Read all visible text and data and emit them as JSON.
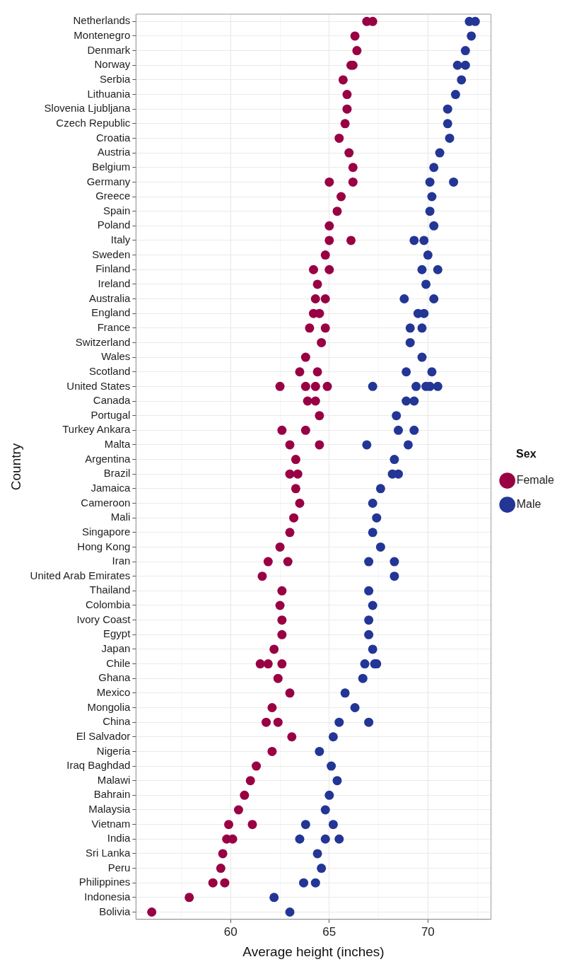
{
  "chart_data": {
    "type": "scatter",
    "orientation": "horizontal",
    "xlabel": "Average height (inches)",
    "ylabel": "Country",
    "legend_title": "Sex",
    "legend": "right",
    "grid": true,
    "marker": "circle",
    "xlim": [
      55.2,
      73.2
    ],
    "xticks": [
      {
        "value": 57.5,
        "label": null
      },
      60,
      {
        "value": 62.5,
        "label": null
      },
      65,
      {
        "value": 67.5,
        "label": null
      },
      70,
      {
        "value": 72.5,
        "label": null
      }
    ],
    "categories": [
      "Netherlands",
      "Montenegro",
      "Denmark",
      "Norway",
      "Serbia",
      "Lithuania",
      "Slovenia Ljubljana",
      "Czech Republic",
      "Croatia",
      "Austria",
      "Belgium",
      "Germany",
      "Greece",
      "Spain",
      "Poland",
      "Italy",
      "Sweden",
      "Finland",
      "Ireland",
      "Australia",
      "England",
      "France",
      "Switzerland",
      "Wales",
      "Scotland",
      "United States",
      "Canada",
      "Portugal",
      "Turkey Ankara",
      "Malta",
      "Argentina",
      "Brazil",
      "Jamaica",
      "Cameroon",
      "Mali",
      "Singapore",
      "Hong Kong",
      "Iran",
      "United Arab Emirates",
      "Thailand",
      "Colombia",
      "Ivory Coast",
      "Egypt",
      "Japan",
      "Chile",
      "Ghana",
      "Mexico",
      "Mongolia",
      "China",
      "El Salvador",
      "Nigeria",
      "Iraq Baghdad",
      "Malawi",
      "Bahrain",
      "Malaysia",
      "Vietnam",
      "India",
      "Sri Lanka",
      "Peru",
      "Philippines",
      "Indonesia",
      "Bolivia"
    ],
    "series": [
      {
        "name": "Female",
        "color": "#990044",
        "x": [
          "Netherlands",
          "Netherlands",
          "Montenegro",
          "Denmark",
          "Norway",
          "Norway",
          "Serbia",
          "Lithuania",
          "Slovenia Ljubljana",
          "Czech Republic",
          "Croatia",
          "Austria",
          "Belgium",
          "Germany",
          "Germany",
          "Greece",
          "Spain",
          "Poland",
          "Italy",
          "Italy",
          "Sweden",
          "Finland",
          "Finland",
          "Ireland",
          "Australia",
          "Australia",
          "England",
          "England",
          "France",
          "France",
          "Switzerland",
          "Wales",
          "Scotland",
          "Scotland",
          "United States",
          "United States",
          "United States",
          "United States",
          "Canada",
          "Canada",
          "Portugal",
          "Turkey Ankara",
          "Turkey Ankara",
          "Malta",
          "Malta",
          "Argentina",
          "Brazil",
          "Brazil",
          "Jamaica",
          "Cameroon",
          "Mali",
          "Singapore",
          "Hong Kong",
          "Iran",
          "Iran",
          "United Arab Emirates",
          "Thailand",
          "Colombia",
          "Ivory Coast",
          "Egypt",
          "Japan",
          "Chile",
          "Chile",
          "Chile",
          "Ghana",
          "Mexico",
          "Mongolia",
          "China",
          "China",
          "El Salvador",
          "Nigeria",
          "Iraq Baghdad",
          "Malawi",
          "Bahrain",
          "Malaysia",
          "Vietnam",
          "Vietnam",
          "India",
          "India",
          "Sri Lanka",
          "Peru",
          "Philippines",
          "Philippines",
          "Indonesia",
          "Bolivia"
        ],
        "values": [
          66.9,
          67.2,
          66.3,
          66.4,
          66.1,
          66.2,
          65.7,
          65.9,
          65.9,
          65.8,
          65.5,
          66.0,
          66.2,
          65.0,
          66.2,
          65.6,
          65.4,
          65.0,
          65.0,
          66.1,
          64.8,
          64.2,
          65.0,
          64.4,
          64.3,
          64.8,
          64.2,
          64.5,
          64.0,
          64.8,
          64.6,
          63.8,
          63.5,
          64.4,
          62.5,
          63.8,
          64.3,
          64.9,
          63.9,
          64.3,
          64.5,
          62.6,
          63.8,
          63.0,
          64.5,
          63.3,
          63.0,
          63.4,
          63.3,
          63.5,
          63.2,
          63.0,
          62.5,
          61.9,
          62.9,
          61.6,
          62.6,
          62.5,
          62.6,
          62.6,
          62.2,
          61.5,
          61.9,
          62.6,
          62.4,
          63.0,
          62.1,
          61.8,
          62.4,
          63.1,
          62.1,
          61.3,
          61.0,
          60.7,
          60.4,
          59.9,
          61.1,
          59.8,
          60.1,
          59.6,
          59.5,
          59.1,
          59.7,
          57.9,
          56.0
        ]
      },
      {
        "name": "Male",
        "color": "#233696",
        "x": [
          "Netherlands",
          "Netherlands",
          "Montenegro",
          "Denmark",
          "Norway",
          "Norway",
          "Serbia",
          "Lithuania",
          "Slovenia Ljubljana",
          "Czech Republic",
          "Croatia",
          "Austria",
          "Belgium",
          "Germany",
          "Germany",
          "Greece",
          "Spain",
          "Poland",
          "Italy",
          "Italy",
          "Sweden",
          "Finland",
          "Finland",
          "Ireland",
          "Australia",
          "Australia",
          "England",
          "England",
          "France",
          "France",
          "Switzerland",
          "Wales",
          "Scotland",
          "Scotland",
          "United States",
          "United States",
          "United States",
          "United States",
          "United States",
          "Canada",
          "Canada",
          "Portugal",
          "Turkey Ankara",
          "Turkey Ankara",
          "Malta",
          "Malta",
          "Argentina",
          "Brazil",
          "Brazil",
          "Jamaica",
          "Cameroon",
          "Mali",
          "Singapore",
          "Hong Kong",
          "Iran",
          "Iran",
          "United Arab Emirates",
          "Thailand",
          "Colombia",
          "Ivory Coast",
          "Egypt",
          "Japan",
          "Chile",
          "Chile",
          "Chile",
          "Ghana",
          "Mexico",
          "Mongolia",
          "China",
          "China",
          "El Salvador",
          "Nigeria",
          "Iraq Baghdad",
          "Malawi",
          "Bahrain",
          "Malaysia",
          "Vietnam",
          "Vietnam",
          "India",
          "India",
          "India",
          "Sri Lanka",
          "Peru",
          "Philippines",
          "Philippines",
          "Indonesia",
          "Bolivia"
        ],
        "values": [
          72.1,
          72.4,
          72.2,
          71.9,
          71.5,
          71.9,
          71.7,
          71.4,
          71.0,
          71.0,
          71.1,
          70.6,
          70.3,
          70.1,
          71.3,
          70.2,
          70.1,
          70.3,
          69.3,
          69.8,
          70.0,
          69.7,
          70.5,
          69.9,
          68.8,
          70.3,
          69.5,
          69.8,
          69.1,
          69.7,
          69.1,
          69.7,
          68.9,
          70.2,
          67.2,
          69.4,
          69.9,
          70.1,
          70.5,
          68.9,
          69.3,
          68.4,
          68.5,
          69.3,
          66.9,
          69.0,
          68.3,
          68.2,
          68.5,
          67.6,
          67.2,
          67.4,
          67.2,
          67.6,
          67.0,
          68.3,
          68.3,
          67.0,
          67.2,
          67.0,
          67.0,
          67.2,
          66.8,
          67.3,
          67.4,
          66.7,
          65.8,
          66.3,
          65.5,
          67.0,
          65.2,
          64.5,
          65.1,
          65.4,
          65.0,
          64.8,
          63.8,
          65.2,
          63.5,
          64.8,
          65.5,
          64.4,
          64.6,
          63.7,
          64.3,
          62.2,
          63.0
        ]
      }
    ]
  }
}
